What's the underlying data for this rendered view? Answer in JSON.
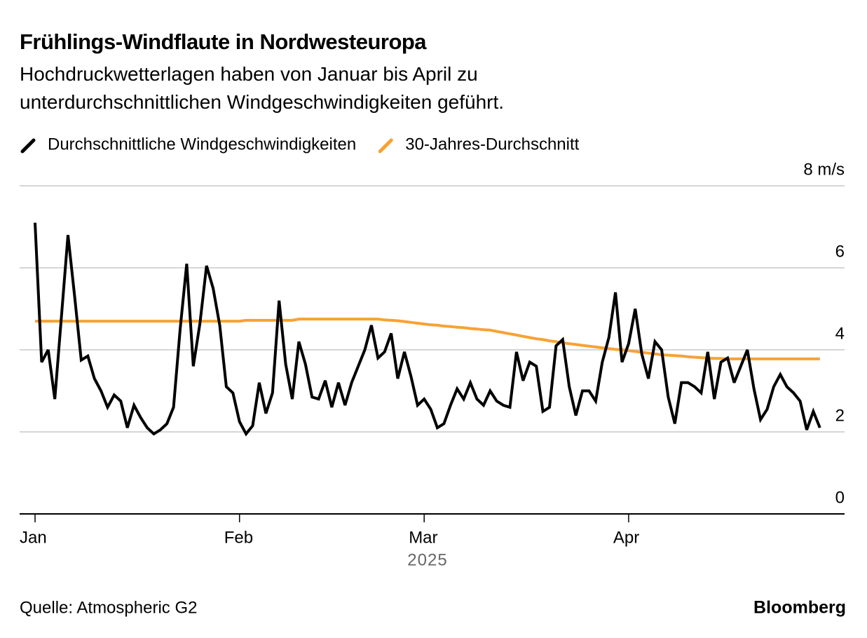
{
  "chart_data": {
    "type": "line",
    "title": "Frühlings-Windflaute in Nordwesteuropa",
    "subtitle": "Hochdruckwetterlagen haben von Januar bis April zu unterdurchschnittlichen Windgeschwindigkeiten geführt.",
    "xlabel": "2025",
    "source": "Quelle: Atmospheric G2",
    "brand": "Bloomberg",
    "categories": [
      "Jan",
      null,
      null,
      null,
      null,
      null,
      null,
      null,
      null,
      null,
      null,
      null,
      null,
      null,
      null,
      null,
      null,
      null,
      null,
      null,
      null,
      null,
      null,
      null,
      null,
      null,
      null,
      null,
      null,
      null,
      null,
      "Feb",
      null,
      null,
      null,
      null,
      null,
      null,
      null,
      null,
      null,
      null,
      null,
      null,
      null,
      null,
      null,
      null,
      null,
      null,
      null,
      null,
      null,
      null,
      null,
      null,
      null,
      null,
      null,
      "Mar",
      null,
      null,
      null,
      null,
      null,
      null,
      null,
      null,
      null,
      null,
      null,
      null,
      null,
      null,
      null,
      null,
      null,
      null,
      null,
      null,
      null,
      null,
      null,
      null,
      null,
      null,
      null,
      null,
      null,
      null,
      "Apr",
      null,
      null,
      null,
      null,
      null,
      null,
      null,
      null,
      null,
      null,
      null,
      null,
      null,
      null,
      null,
      null,
      null,
      null,
      null,
      null,
      null,
      null,
      null,
      null,
      null,
      null,
      null,
      null,
      null
    ],
    "series": [
      {
        "name": "Durchschnittliche Windgeschwindigkeiten",
        "color": "#000000",
        "values": [
          7.1,
          3.7,
          4.0,
          2.8,
          4.8,
          6.8,
          5.3,
          3.75,
          3.85,
          3.3,
          3.0,
          2.6,
          2.9,
          2.75,
          2.1,
          2.65,
          2.35,
          2.1,
          1.95,
          2.05,
          2.2,
          2.6,
          4.5,
          6.1,
          3.6,
          4.65,
          6.05,
          5.5,
          4.6,
          3.1,
          2.95,
          2.25,
          1.95,
          2.15,
          3.2,
          2.45,
          2.95,
          5.2,
          3.65,
          2.8,
          4.2,
          3.65,
          2.85,
          2.8,
          3.25,
          2.6,
          3.2,
          2.65,
          3.2,
          3.6,
          4.0,
          4.6,
          3.8,
          3.95,
          4.4,
          3.3,
          3.95,
          3.35,
          2.65,
          2.8,
          2.55,
          2.1,
          2.2,
          2.65,
          3.05,
          2.8,
          3.2,
          2.8,
          2.65,
          3.0,
          2.75,
          2.65,
          2.6,
          3.95,
          3.25,
          3.7,
          3.6,
          2.5,
          2.6,
          4.1,
          4.25,
          3.1,
          2.4,
          3.0,
          3.0,
          2.75,
          3.7,
          4.3,
          5.4,
          3.7,
          4.15,
          5.0,
          3.9,
          3.3,
          4.2,
          4.0,
          2.85,
          2.2,
          3.2,
          3.2,
          3.1,
          2.95,
          3.95,
          2.8,
          3.7,
          3.8,
          3.2,
          3.6,
          4.0,
          3.05,
          2.3,
          2.55,
          3.1,
          3.4,
          3.1,
          2.95,
          2.75,
          2.05,
          2.5,
          2.1
        ]
      },
      {
        "name": "30-Jahres-Durchschnitt",
        "color": "#f7a233",
        "values": [
          4.7,
          4.7,
          4.7,
          4.7,
          4.7,
          4.7,
          4.7,
          4.7,
          4.7,
          4.7,
          4.7,
          4.7,
          4.7,
          4.7,
          4.7,
          4.7,
          4.7,
          4.7,
          4.7,
          4.7,
          4.7,
          4.7,
          4.7,
          4.7,
          4.7,
          4.7,
          4.7,
          4.7,
          4.7,
          4.7,
          4.7,
          4.7,
          4.72,
          4.72,
          4.72,
          4.72,
          4.72,
          4.72,
          4.72,
          4.72,
          4.75,
          4.75,
          4.75,
          4.75,
          4.75,
          4.75,
          4.75,
          4.75,
          4.75,
          4.75,
          4.75,
          4.75,
          4.75,
          4.73,
          4.72,
          4.71,
          4.69,
          4.67,
          4.65,
          4.63,
          4.61,
          4.6,
          4.58,
          4.57,
          4.55,
          4.54,
          4.52,
          4.51,
          4.49,
          4.48,
          4.45,
          4.42,
          4.39,
          4.36,
          4.33,
          4.3,
          4.27,
          4.25,
          4.22,
          4.2,
          4.17,
          4.15,
          4.13,
          4.11,
          4.09,
          4.07,
          4.05,
          4.03,
          4.01,
          4.0,
          3.98,
          3.96,
          3.94,
          3.92,
          3.9,
          3.88,
          3.87,
          3.86,
          3.85,
          3.83,
          3.82,
          3.81,
          3.8,
          3.79,
          3.79,
          3.78,
          3.78,
          3.78,
          3.78,
          3.78,
          3.78,
          3.78,
          3.78,
          3.78,
          3.78,
          3.78,
          3.78,
          3.78,
          3.78,
          3.78
        ]
      }
    ],
    "ylim": [
      0,
      8
    ],
    "yticks": [
      0,
      2,
      4,
      6,
      {
        "value": 8,
        "label": "8 m/s"
      }
    ],
    "grid": true
  }
}
